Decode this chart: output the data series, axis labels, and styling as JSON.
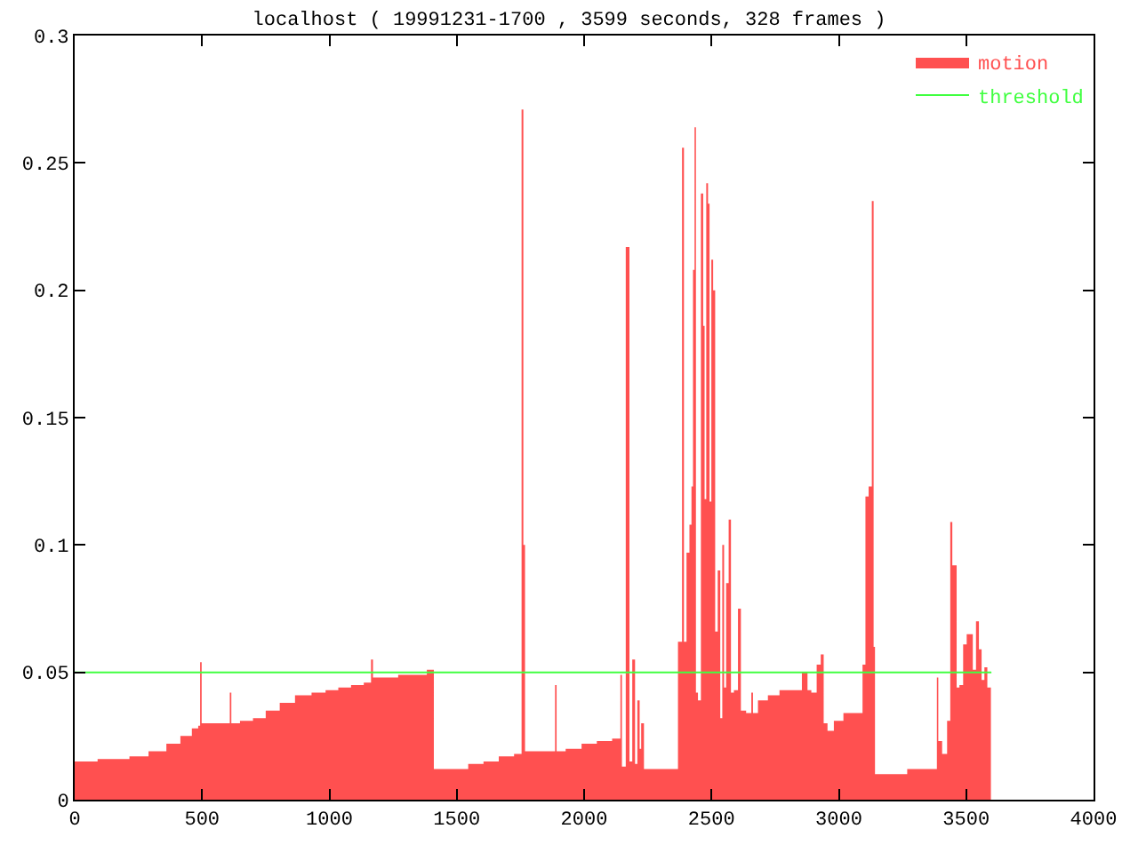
{
  "chart_data": {
    "type": "area",
    "title": "localhost ( 19991231-1700 , 3599 seconds, 328 frames )",
    "xlim": [
      0,
      4000
    ],
    "xticks": [
      0,
      500,
      1000,
      1500,
      2000,
      2500,
      3000,
      3500,
      4000
    ],
    "ylim": [
      0,
      0.3
    ],
    "yticks": [
      0,
      0.05,
      0.1,
      0.15,
      0.2,
      0.25,
      0.3
    ],
    "legend": "top right",
    "series": [
      {
        "name": "motion",
        "color": "#ff5050",
        "x": [
          0,
          60,
          120,
          180,
          250,
          330,
          390,
          440,
          480,
          490,
          495,
          502,
          560,
          606,
          612,
          618,
          680,
          720,
          780,
          830,
          900,
          960,
          1010,
          1060,
          1110,
          1160,
          1167,
          1175,
          1240,
          1300,
          1360,
          1405,
          1415,
          1510,
          1580,
          1630,
          1700,
          1750,
          1759,
          1764,
          1772,
          1830,
          1883,
          1889,
          1895,
          1960,
          2020,
          2080,
          2140,
          2145,
          2152,
          2175,
          2181,
          2197,
          2203,
          2215,
          2221,
          2227,
          2243,
          2300,
          2357,
          2380,
          2389,
          2395,
          2409,
          2418,
          2425,
          2430,
          2437,
          2441,
          2453,
          2464,
          2471,
          2475,
          2484,
          2489,
          2496,
          2503,
          2510,
          2519,
          2530,
          2539,
          2546,
          2553,
          2562,
          2573,
          2580,
          2596,
          2612,
          2619,
          2653,
          2660,
          2666,
          2699,
          2744,
          2790,
          2836,
          2874,
          2880,
          2904,
          2922,
          2936,
          2945,
          2966,
          2995,
          3041,
          3086,
          3100,
          3109,
          3125,
          3134,
          3139,
          3145,
          3223,
          3314,
          3383,
          3387,
          3394,
          3417,
          3433,
          3442,
          3449,
          3458,
          3467,
          3480,
          3496,
          3508,
          3519,
          3533,
          3544,
          3556,
          3565,
          3578,
          3588,
          3597
        ],
        "values": [
          0.015,
          0.015,
          0.016,
          0.016,
          0.017,
          0.019,
          0.022,
          0.025,
          0.028,
          0.029,
          0.054,
          0.03,
          0.03,
          0.03,
          0.042,
          0.03,
          0.031,
          0.032,
          0.035,
          0.038,
          0.041,
          0.042,
          0.043,
          0.044,
          0.045,
          0.046,
          0.055,
          0.048,
          0.048,
          0.049,
          0.049,
          0.051,
          0.012,
          0.012,
          0.014,
          0.015,
          0.017,
          0.018,
          0.271,
          0.1,
          0.019,
          0.019,
          0.019,
          0.045,
          0.019,
          0.02,
          0.022,
          0.023,
          0.024,
          0.049,
          0.013,
          0.217,
          0.015,
          0.055,
          0.014,
          0.039,
          0.02,
          0.03,
          0.012,
          0.012,
          0.012,
          0.062,
          0.256,
          0.062,
          0.097,
          0.108,
          0.123,
          0.208,
          0.264,
          0.042,
          0.039,
          0.238,
          0.186,
          0.118,
          0.242,
          0.234,
          0.117,
          0.212,
          0.2,
          0.066,
          0.09,
          0.032,
          0.1,
          0.044,
          0.085,
          0.11,
          0.042,
          0.043,
          0.075,
          0.035,
          0.034,
          0.042,
          0.034,
          0.039,
          0.041,
          0.043,
          0.043,
          0.05,
          0.043,
          0.042,
          0.053,
          0.057,
          0.03,
          0.027,
          0.031,
          0.034,
          0.034,
          0.053,
          0.119,
          0.123,
          0.235,
          0.06,
          0.01,
          0.01,
          0.012,
          0.012,
          0.048,
          0.023,
          0.018,
          0.031,
          0.109,
          0.092,
          0.092,
          0.044,
          0.045,
          0.061,
          0.065,
          0.065,
          0.051,
          0.07,
          0.059,
          0.047,
          0.052,
          0.044,
          0.044
        ]
      },
      {
        "name": "threshold",
        "type": "line",
        "color": "#40ff40",
        "x": [
          0,
          3599
        ],
        "values": [
          0.05,
          0.05
        ]
      }
    ]
  }
}
